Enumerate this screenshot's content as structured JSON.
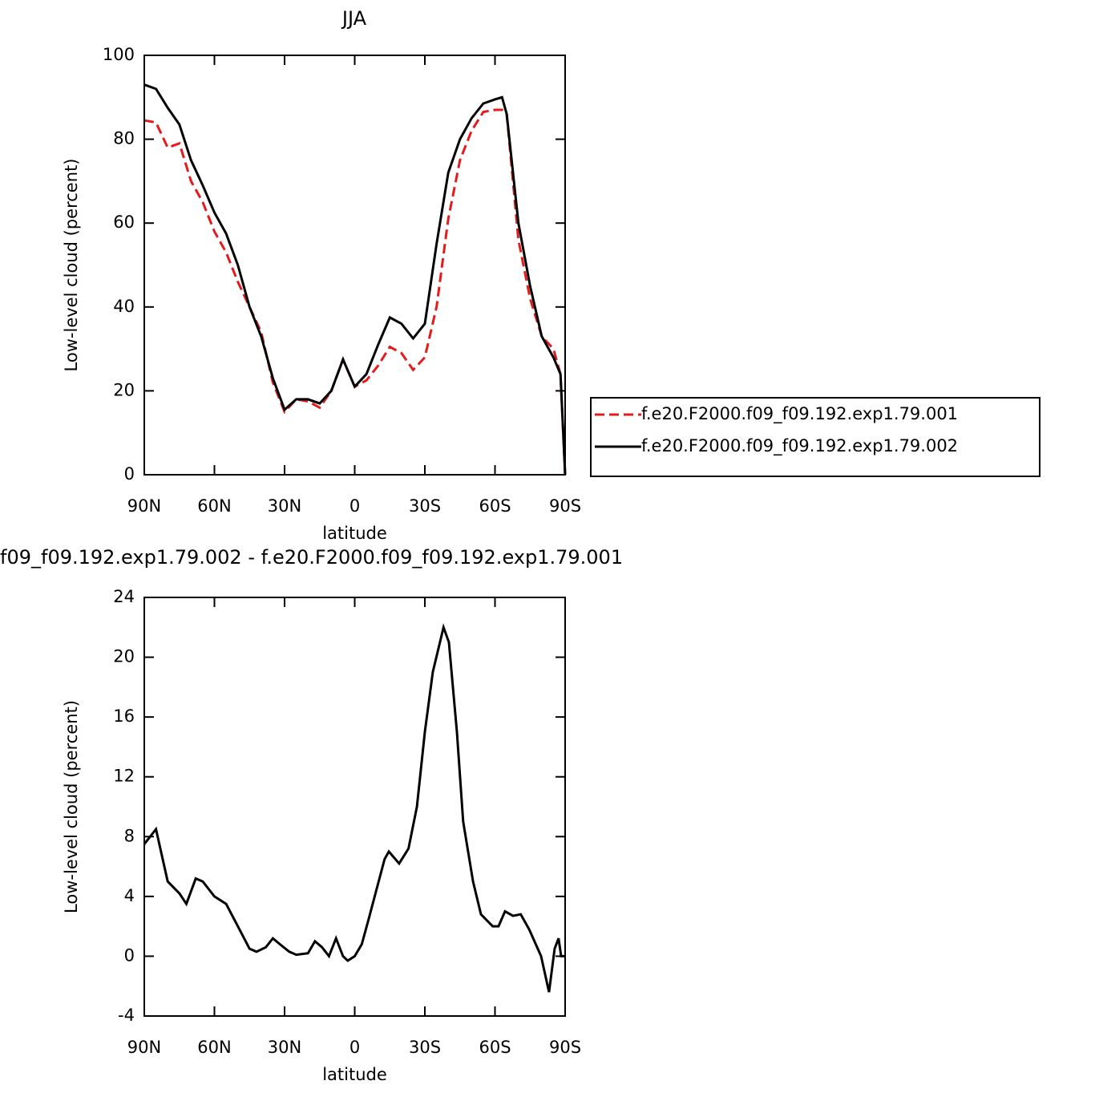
{
  "chart_data": [
    {
      "type": "line",
      "title": "JJA",
      "xlabel": "latitude",
      "ylabel": "Low-level cloud (percent)",
      "x": [
        90,
        85,
        80,
        75,
        70,
        65,
        60,
        55,
        50,
        45,
        40,
        35,
        30,
        25,
        20,
        15,
        10,
        5,
        0,
        -5,
        -10,
        -15,
        -20,
        -25,
        -30,
        -35,
        -40,
        -45,
        -50,
        -55,
        -60,
        -63,
        -65,
        -70,
        -75,
        -80,
        -85,
        -88,
        -90
      ],
      "series": [
        {
          "name": "f.e20.F2000.f09_f09.192.exp1.79.001",
          "color": "#e41a1c",
          "style": "dashed",
          "values": [
            84.5,
            84,
            78,
            79,
            70,
            65,
            58,
            53,
            46,
            40,
            34,
            22,
            15,
            18,
            17.5,
            16,
            20,
            27.5,
            21,
            22.5,
            26,
            30.5,
            29,
            25,
            28,
            40,
            61,
            75,
            82,
            86.5,
            87,
            87,
            86,
            56,
            42,
            33,
            30,
            24,
            0
          ]
        },
        {
          "name": "f.e20.F2000.f09_f09.192.exp1.79.002",
          "color": "#000000",
          "style": "solid",
          "values": [
            93,
            92,
            87.5,
            83.5,
            75,
            69,
            62.5,
            57.5,
            50,
            40,
            33,
            23,
            15.5,
            18,
            18,
            17,
            20,
            27.5,
            21,
            24,
            31,
            37.5,
            36,
            32.5,
            36,
            55,
            72,
            80,
            85,
            88.5,
            89.5,
            90,
            86,
            60,
            45,
            33,
            28,
            24,
            0
          ]
        }
      ],
      "xlim": [
        90,
        -90
      ],
      "xticks": [
        {
          "value": 90,
          "label": "90N"
        },
        {
          "value": 60,
          "label": "60N"
        },
        {
          "value": 30,
          "label": "30N"
        },
        0,
        {
          "value": -30,
          "label": "30S"
        },
        {
          "value": -60,
          "label": "60S"
        },
        {
          "value": -90,
          "label": "90S"
        }
      ],
      "ylim": [
        0,
        100
      ],
      "yticks": [
        0,
        20,
        40,
        60,
        80,
        100
      ],
      "legend": "right"
    },
    {
      "type": "line",
      "title": "f09_f09.192.exp1.79.002 - f.e20.F2000.f09_f09.192.exp1.79.001",
      "xlabel": "latitude",
      "ylabel": "Low-level cloud (percent)",
      "x": [
        90,
        85,
        80,
        75,
        72,
        68,
        65,
        60,
        55,
        50,
        45,
        42,
        38,
        35,
        32,
        28,
        25,
        20,
        17,
        14,
        11,
        8,
        5,
        3,
        0,
        -3,
        -6,
        -9.4,
        -12.8,
        -14.6,
        -19,
        -23,
        -26.6,
        -30,
        -33.4,
        -38,
        -40.3,
        -43.7,
        -46.4,
        -50.6,
        -54,
        -59,
        -61.5,
        -64.3,
        -67.7,
        -71,
        -74.6,
        -79.7,
        -83.1,
        -85.5,
        -87.2,
        -88.3,
        -90
      ],
      "values": [
        7.5,
        8.5,
        5,
        4.2,
        3.5,
        5.2,
        5,
        4,
        3.5,
        2,
        0.5,
        0.3,
        0.6,
        1.2,
        0.8,
        0.3,
        0.1,
        0.2,
        1,
        0.6,
        0,
        1.2,
        0,
        -0.3,
        0,
        0.8,
        2.5,
        4.5,
        6.5,
        7,
        6.2,
        7.2,
        10,
        15,
        19,
        22,
        21,
        15,
        9,
        5,
        2.8,
        2,
        2,
        3,
        2.7,
        2.8,
        1.8,
        0,
        -2.4,
        0.5,
        1.2,
        0,
        0
      ],
      "color": "#000000",
      "xlim": [
        90,
        -90
      ],
      "xticks": [
        {
          "value": 90,
          "label": "90N"
        },
        {
          "value": 60,
          "label": "60N"
        },
        {
          "value": 30,
          "label": "30N"
        },
        0,
        {
          "value": -30,
          "label": "30S"
        },
        {
          "value": -60,
          "label": "60S"
        },
        {
          "value": -90,
          "label": "90S"
        }
      ],
      "ylim": [
        -4,
        24
      ],
      "yticks": [
        -4,
        0,
        4,
        8,
        12,
        16,
        20,
        24
      ]
    }
  ]
}
